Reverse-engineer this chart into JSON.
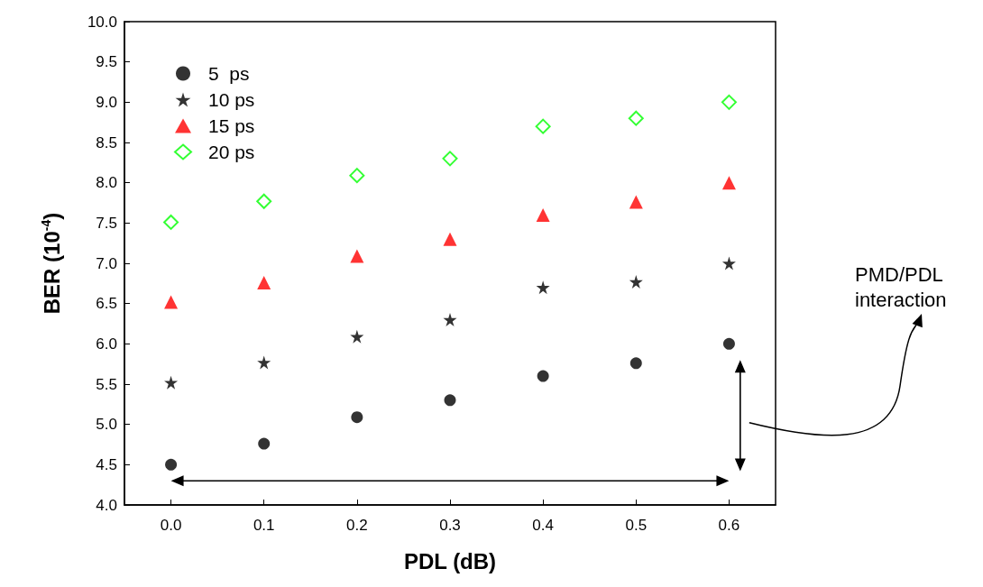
{
  "chart_data": {
    "type": "scatter",
    "xlabel": "PDL (dB)",
    "ylabel": "BER (10$^{-4}$)",
    "x": [
      0,
      0.1,
      0.2,
      0.3,
      0.4,
      0.5,
      0.6
    ],
    "series": [
      {
        "name": "5  ps",
        "color": "#000000",
        "marker": "circle",
        "values": [
          4.5,
          4.76,
          5.09,
          5.3,
          5.6,
          5.76,
          6.0
        ]
      },
      {
        "name": "10 ps",
        "color": "#000000",
        "marker": "star",
        "values": [
          5.52,
          5.77,
          6.09,
          6.3,
          6.7,
          6.77,
          7.0
        ]
      },
      {
        "name": "15 ps",
        "color": "#ff0000",
        "marker": "triangle",
        "values": [
          6.52,
          6.76,
          7.09,
          7.3,
          7.6,
          7.76,
          8.0
        ]
      },
      {
        "name": "20 ps",
        "color": "#00ff00",
        "marker": "diamond",
        "values": [
          7.51,
          7.77,
          8.09,
          8.3,
          8.7,
          8.8,
          9.0
        ]
      }
    ],
    "xlim": [
      -0.05,
      0.65
    ],
    "xticks": [
      {
        "value": 0,
        "label": "0.0"
      },
      {
        "value": 0.1,
        "label": "0.1"
      },
      {
        "value": 0.2,
        "label": "0.2"
      },
      {
        "value": 0.3,
        "label": "0.3"
      },
      {
        "value": 0.4,
        "label": "0.4"
      },
      {
        "value": 0.5,
        "label": "0.5"
      },
      {
        "value": 0.6,
        "label": "0.6"
      }
    ],
    "ylim": [
      4,
      10
    ],
    "yticks": [
      {
        "value": 4,
        "label": "4.0"
      },
      {
        "value": 4.5,
        "label": "4.5"
      },
      {
        "value": 5,
        "label": "5.0"
      },
      {
        "value": 5.5,
        "label": "5.5"
      },
      {
        "value": 6,
        "label": "6.0"
      },
      {
        "value": 6.5,
        "label": "6.5"
      },
      {
        "value": 7,
        "label": "7.0"
      },
      {
        "value": 7.5,
        "label": "7.5"
      },
      {
        "value": 8,
        "label": "8.0"
      },
      {
        "value": 8.5,
        "label": "8.5"
      },
      {
        "value": 9,
        "label": "9.0"
      },
      {
        "value": 9.5,
        "label": "9.5"
      },
      {
        "value": 10,
        "label": "10.0"
      }
    ],
    "grid": false,
    "legend": "top left",
    "annotations": [
      "PMD/PDL\ninteraction"
    ]
  }
}
